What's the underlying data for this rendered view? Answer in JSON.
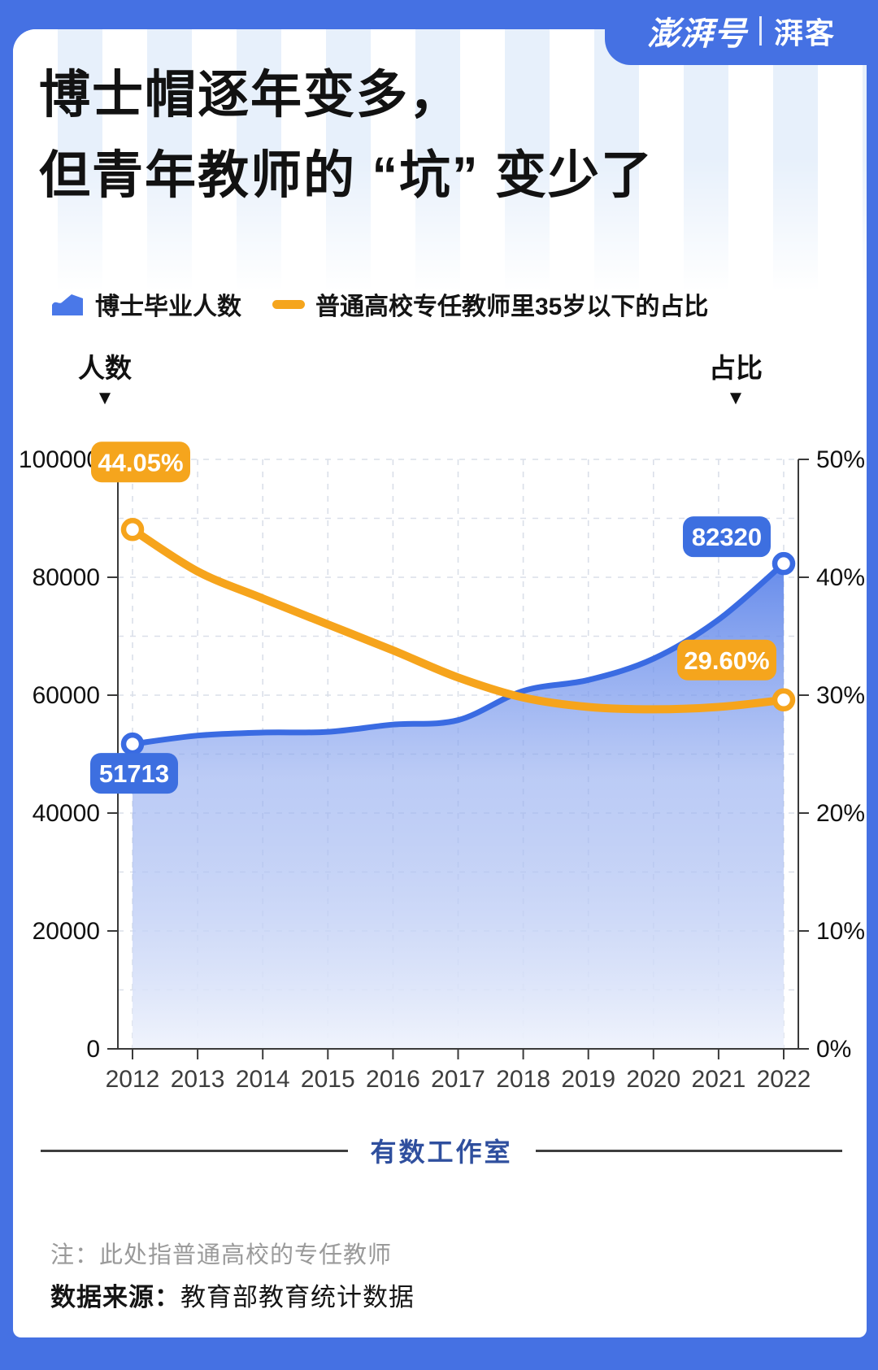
{
  "logo": {
    "brand": "澎湃号",
    "divider": "|",
    "sub": "湃客"
  },
  "title": {
    "line1": "博士帽逐年变多，",
    "line2": "但青年教师的 “坑” 变少了"
  },
  "legend": [
    {
      "label": "博士毕业人数",
      "color": "#4A78E8",
      "marker": "area"
    },
    {
      "label": "普通高校专任教师里35岁以下的占比",
      "color": "#F5A51D",
      "marker": "dash"
    }
  ],
  "axis_headers": {
    "left": "人数",
    "right": "占比",
    "pointer": "▼"
  },
  "chart_data": {
    "type": "area",
    "subtype": "dual-axis area + line",
    "x": [
      2012,
      2013,
      2014,
      2015,
      2016,
      2017,
      2018,
      2019,
      2020,
      2021,
      2022
    ],
    "series": [
      {
        "name": "博士毕业人数",
        "type": "area",
        "axis": "left",
        "color": "#3A6BE2",
        "values": [
          51713,
          53139,
          53653,
          53778,
          55011,
          55767,
          60724,
          62578,
          66176,
          72816,
          82320
        ]
      },
      {
        "name": "普通高校专任教师里35岁以下的占比",
        "type": "line",
        "axis": "right",
        "color": "#F6A41C",
        "values": [
          44.05,
          40.5,
          38.2,
          36.0,
          33.8,
          31.5,
          29.8,
          29.0,
          28.8,
          29.0,
          29.6
        ]
      }
    ],
    "left_axis": {
      "title": "人数",
      "min": 0,
      "max": 100000,
      "tick_step": 20000,
      "grid_step": 10000,
      "tick_labels": [
        "0",
        "20000",
        "40000",
        "60000",
        "80000",
        "100000"
      ]
    },
    "right_axis": {
      "title": "占比",
      "min": 0,
      "max": 50,
      "tick_step": 10,
      "tick_labels": [
        "0%",
        "10%",
        "20%",
        "30%",
        "40%",
        "50%"
      ]
    },
    "annotations": [
      {
        "text": "44.05%",
        "series": 1,
        "point": 0,
        "color": "#F5A51D"
      },
      {
        "text": "51713",
        "series": 0,
        "point": 0,
        "color": "#3D6FE0"
      },
      {
        "text": "82320",
        "series": 0,
        "point": 10,
        "color": "#3D6FE0"
      },
      {
        "text": "29.60%",
        "series": 1,
        "point": 10,
        "color": "#F5A51D"
      }
    ],
    "grid": true,
    "legend_position": "top"
  },
  "footer": {
    "studio": "有数工作室",
    "note": "注：此处指普通高校的专任教师",
    "source_label": "数据来源：",
    "source": "教育部教育统计数据"
  }
}
